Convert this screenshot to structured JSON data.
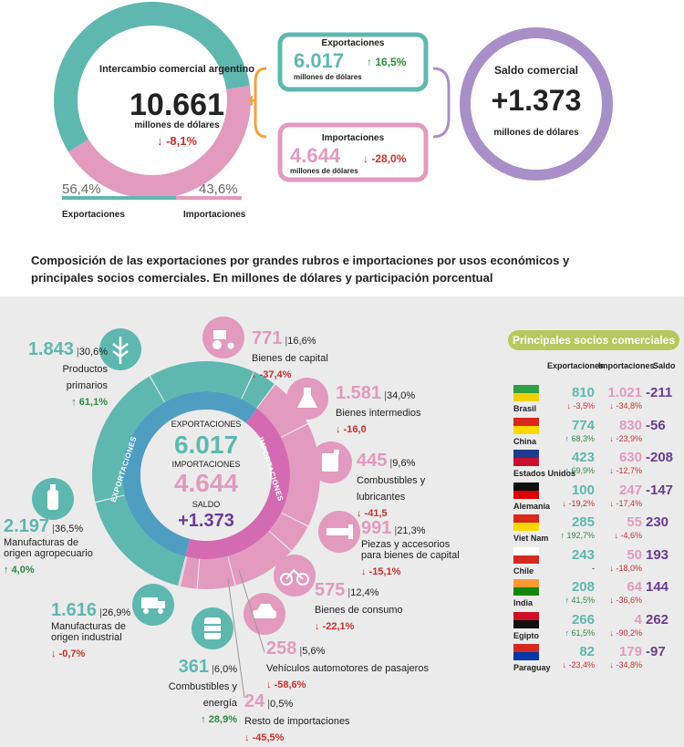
{
  "top": {
    "donut": {
      "title": "Intercambio comercial argentino",
      "value": "10.661",
      "unit": "millones de dólares",
      "change": "-8,1%",
      "exp_pct_label": "56,4%",
      "imp_pct_label": "43,6%",
      "exp_label": "Exportaciones",
      "imp_label": "Importaciones",
      "exp_share": 56.4,
      "imp_share": 43.6
    },
    "exports_box": {
      "title": "Exportaciones",
      "value": "6.017",
      "change": "16,5%",
      "unit": "millones de dólares"
    },
    "imports_box": {
      "title": "Importaciones",
      "value": "4.644",
      "change": "-28,0%",
      "unit": "millones de dólares"
    },
    "plus": "+",
    "balance": {
      "title": "Saldo comercial",
      "value": "+1.373",
      "unit": "millones de dólares"
    }
  },
  "heading": "Composición de las exportaciones por grandes rubros e importaciones por usos económicos y principales socios comerciales. En millones de dólares y participación porcentual",
  "center": {
    "exp_label": "EXPORTACIONES",
    "exp_value": "6.017",
    "imp_label": "IMPORTACIONES",
    "imp_value": "4.644",
    "saldo_label": "SALDO",
    "saldo_value": "+1.373",
    "ring_exp": "EXPORTACIONES",
    "ring_imp": "IMPORTACIONES"
  },
  "export_items": [
    {
      "value": "1.843",
      "pct": "30,6%",
      "name": "Productos primarios",
      "change": "61,1%",
      "dir": "up"
    },
    {
      "value": "2.197",
      "pct": "36,5%",
      "name": "Manufacturas de origen agropecuario",
      "change": "4,0%",
      "dir": "up"
    },
    {
      "value": "1.616",
      "pct": "26,9%",
      "name": "Manufacturas de origen industrial",
      "change": "-0,7%",
      "dir": "down"
    },
    {
      "value": "361",
      "pct": "6,0%",
      "name": "Combustibles y energía",
      "change": "28,9%",
      "dir": "up"
    }
  ],
  "import_items": [
    {
      "value": "771",
      "pct": "16,6%",
      "name": "Bienes de capital",
      "change": "-37,4%",
      "dir": "down"
    },
    {
      "value": "1.581",
      "pct": "34,0%",
      "name": "Bienes intermedios",
      "change": "-16,0",
      "dir": "down"
    },
    {
      "value": "445",
      "pct": "9,6%",
      "name": "Combustibles y lubricantes",
      "change": "-41,5",
      "dir": "down"
    },
    {
      "value": "991",
      "pct": "21,3%",
      "name": "Piezas y accesorios para bienes de capital",
      "change": "-15,1%",
      "dir": "down"
    },
    {
      "value": "575",
      "pct": "12,4%",
      "name": "Bienes de consumo",
      "change": "-22,1%",
      "dir": "down"
    },
    {
      "value": "258",
      "pct": "5,6%",
      "name": "Vehículos automotores de pasajeros",
      "change": "-58,6%",
      "dir": "down"
    },
    {
      "value": "24",
      "pct": "0,5%",
      "name": "Resto de importaciones",
      "change": "-45,5%",
      "dir": "down"
    }
  ],
  "partners": {
    "title": "Principales socios comerciales",
    "col_exp": "Exportaciones",
    "col_imp": "Importaciones",
    "col_saldo": "Saldo",
    "rows": [
      {
        "country": "Brasil",
        "exp": "810",
        "exp_chg": "-3,5%",
        "exp_dir": "down",
        "imp": "1.021",
        "imp_chg": "-34,8%",
        "imp_dir": "down",
        "saldo": "-211"
      },
      {
        "country": "China",
        "exp": "774",
        "exp_chg": "68,3%",
        "exp_dir": "up",
        "imp": "830",
        "imp_chg": "-23,9%",
        "imp_dir": "down",
        "saldo": "-56"
      },
      {
        "country": "Estados Unidos",
        "exp": "423",
        "exp_chg": "69,9%",
        "exp_dir": "up",
        "imp": "630",
        "imp_chg": "-12,7%",
        "imp_dir": "down",
        "saldo": "-208"
      },
      {
        "country": "Alemania",
        "exp": "100",
        "exp_chg": "-19,2%",
        "exp_dir": "down",
        "imp": "247",
        "imp_chg": "-17,4%",
        "imp_dir": "down",
        "saldo": "-147"
      },
      {
        "country": "Viet Nam",
        "exp": "285",
        "exp_chg": "192,7%",
        "exp_dir": "up",
        "imp": "55",
        "imp_chg": "-4,6%",
        "imp_dir": "down",
        "saldo": "230"
      },
      {
        "country": "Chile",
        "exp": "243",
        "exp_chg": "-",
        "exp_dir": "none",
        "imp": "50",
        "imp_chg": "-18,0%",
        "imp_dir": "down",
        "saldo": "193"
      },
      {
        "country": "India",
        "exp": "208",
        "exp_chg": "41,5%",
        "exp_dir": "up",
        "imp": "64",
        "imp_chg": "-36,6%",
        "imp_dir": "down",
        "saldo": "144"
      },
      {
        "country": "Egipto",
        "exp": "266",
        "exp_chg": "61,5%",
        "exp_dir": "up",
        "imp": "4",
        "imp_chg": "-90,2%",
        "imp_dir": "down",
        "saldo": "262"
      },
      {
        "country": "Paraguay",
        "exp": "82",
        "exp_chg": "-23,4%",
        "exp_dir": "down",
        "imp": "179",
        "imp_chg": "-34,8%",
        "imp_dir": "down",
        "saldo": "-97"
      }
    ]
  },
  "colors": {
    "exports": "#5fb8b0",
    "imports": "#e39abf",
    "balance": "#a98fc7",
    "accent_orange": "#f2a33a",
    "pill": "#b7c95e"
  },
  "chart_data": [
    {
      "type": "pie",
      "labels": [
        "Exportaciones",
        "Importaciones"
      ],
      "values": [
        56.4,
        43.6
      ],
      "unit": "%"
    },
    {
      "type": "pie",
      "labels": [
        "Productos primarios",
        "Manufacturas de origen agropecuario",
        "Manufacturas de origen industrial",
        "Combustibles y energía"
      ],
      "values": [
        1843,
        2197,
        1616,
        361
      ]
    },
    {
      "type": "pie",
      "labels": [
        "Bienes de capital",
        "Bienes intermedios",
        "Combustibles y lubricantes",
        "Piezas y accesorios para bienes de capital",
        "Bienes de consumo",
        "Vehículos automotores de pasajeros",
        "Resto de importaciones"
      ],
      "values": [
        771,
        1581,
        445,
        991,
        575,
        258,
        24
      ]
    },
    {
      "type": "table",
      "columns": [
        "Exportaciones",
        "Importaciones",
        "Saldo"
      ],
      "rows": [
        "Brasil",
        "China",
        "Estados Unidos",
        "Alemania",
        "Viet Nam",
        "Chile",
        "India",
        "Egipto",
        "Paraguay"
      ],
      "values": [
        [
          810,
          1021,
          -211
        ],
        [
          774,
          830,
          -56
        ],
        [
          423,
          630,
          -208
        ],
        [
          100,
          247,
          -147
        ],
        [
          285,
          55,
          230
        ],
        [
          243,
          50,
          193
        ],
        [
          208,
          64,
          144
        ],
        [
          266,
          4,
          262
        ],
        [
          82,
          179,
          -97
        ]
      ]
    }
  ]
}
